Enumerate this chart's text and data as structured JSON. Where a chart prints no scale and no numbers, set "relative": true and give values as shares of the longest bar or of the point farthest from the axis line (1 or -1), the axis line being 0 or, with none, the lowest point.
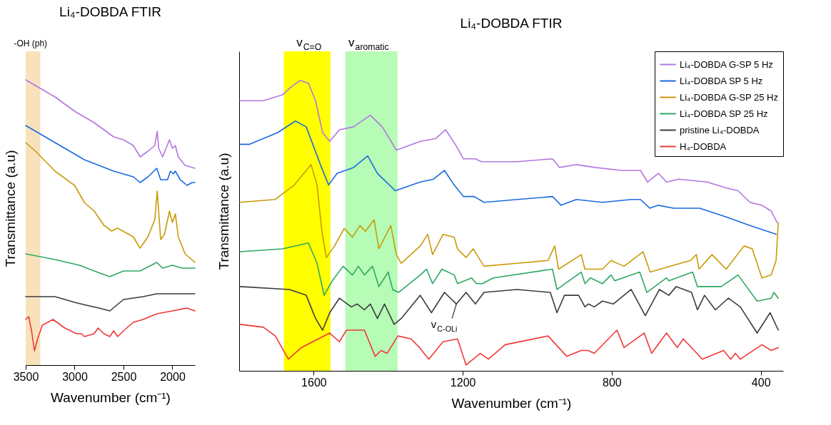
{
  "chart_data": [
    {
      "type": "line",
      "title": "Li₄-DOBDA FTIR",
      "xlabel": "Wavenumber (cm⁻¹)",
      "ylabel": "Transmittance (a.u)",
      "relative": true,
      "xlim": [
        3500,
        1770
      ],
      "xticks": [
        3500,
        3000,
        2500,
        2000
      ],
      "bands": [
        {
          "axis": "x",
          "from": 3500,
          "to": 3350,
          "label": "-OH (ph)",
          "color": "#f8e2bc"
        }
      ],
      "series": [
        {
          "color": "#b277e0",
          "x": [
            3500,
            3400,
            3200,
            3000,
            2800,
            2600,
            2500,
            2400,
            2330,
            2250,
            2180,
            2155,
            2140,
            2100,
            2030,
            2000,
            1970,
            1940,
            1870,
            1770
          ],
          "values": [
            1.0,
            0.98,
            0.94,
            0.89,
            0.85,
            0.8,
            0.79,
            0.77,
            0.73,
            0.75,
            0.77,
            0.82,
            0.76,
            0.73,
            0.79,
            0.76,
            0.77,
            0.73,
            0.7,
            0.69
          ]
        },
        {
          "color": "#1a6ae0",
          "x": [
            3500,
            3200,
            2900,
            2600,
            2400,
            2330,
            2250,
            2160,
            2120,
            2050,
            2020,
            1990,
            1970,
            1920,
            1850,
            1800,
            1770
          ],
          "values": [
            0.84,
            0.78,
            0.72,
            0.68,
            0.66,
            0.64,
            0.66,
            0.69,
            0.65,
            0.65,
            0.68,
            0.67,
            0.68,
            0.65,
            0.63,
            0.64,
            0.64
          ]
        },
        {
          "color": "#c99a06",
          "x": [
            3500,
            3400,
            3200,
            3000,
            2900,
            2800,
            2700,
            2620,
            2560,
            2400,
            2330,
            2250,
            2180,
            2155,
            2120,
            2080,
            2030,
            2000,
            1970,
            1940,
            1870,
            1770
          ],
          "values": [
            0.78,
            0.75,
            0.68,
            0.63,
            0.57,
            0.54,
            0.49,
            0.47,
            0.48,
            0.45,
            0.41,
            0.45,
            0.51,
            0.61,
            0.44,
            0.46,
            0.54,
            0.5,
            0.53,
            0.45,
            0.39,
            0.36
          ]
        },
        {
          "color": "#2ea862",
          "x": [
            3500,
            3200,
            2950,
            2800,
            2640,
            2500,
            2330,
            2160,
            2100,
            2000,
            1900,
            1770
          ],
          "values": [
            0.39,
            0.37,
            0.35,
            0.33,
            0.31,
            0.33,
            0.33,
            0.36,
            0.34,
            0.35,
            0.34,
            0.34
          ]
        },
        {
          "color": "#3c3c3c",
          "x": [
            3500,
            3200,
            3000,
            2880,
            2750,
            2640,
            2500,
            2300,
            2160,
            2000,
            1770
          ],
          "values": [
            0.24,
            0.24,
            0.22,
            0.21,
            0.2,
            0.19,
            0.23,
            0.24,
            0.25,
            0.25,
            0.25
          ]
        },
        {
          "color": "#f03838",
          "x": [
            3500,
            3470,
            3440,
            3410,
            3380,
            3330,
            3220,
            3100,
            2980,
            2930,
            2900,
            2800,
            2760,
            2700,
            2640,
            2600,
            2560,
            2500,
            2400,
            2300,
            2160,
            2000,
            1850,
            1770
          ],
          "values": [
            0.16,
            0.17,
            0.12,
            0.05,
            0.09,
            0.14,
            0.16,
            0.13,
            0.11,
            0.11,
            0.1,
            0.11,
            0.13,
            0.11,
            0.1,
            0.12,
            0.1,
            0.12,
            0.15,
            0.16,
            0.18,
            0.19,
            0.2,
            0.19
          ]
        }
      ]
    },
    {
      "type": "line",
      "title": "Li₄-DOBDA FTIR",
      "xlabel": "Wavenumber (cm⁻¹)",
      "ylabel": "Transmittance (a.u)",
      "relative": true,
      "xlim": [
        1800,
        340
      ],
      "xticks": [
        1600,
        1200,
        800,
        400
      ],
      "legend": "top right",
      "bands": [
        {
          "axis": "x",
          "from": 1680,
          "to": 1555,
          "label": "v$_{C=O}$",
          "color": "#ffff00"
        },
        {
          "axis": "x",
          "from": 1515,
          "to": 1375,
          "label": "v$_{aromatic}$",
          "color": "#b6fbb6"
        }
      ],
      "annotations": [
        {
          "text": "v$_{C-OLi}$",
          "x": 1217,
          "y": 0.23
        }
      ],
      "series": [
        {
          "name": "Li₄-DOBDA G-SP 5 Hz",
          "color": "#b277e0",
          "x": [
            1798,
            1735,
            1684,
            1658,
            1636,
            1614,
            1595,
            1576,
            1557,
            1531,
            1493,
            1448,
            1416,
            1378,
            1314,
            1272,
            1246,
            1220,
            1198,
            1166,
            1150,
            1054,
            959,
            940,
            895,
            844,
            774,
            723,
            704,
            675,
            653,
            621,
            544,
            493,
            461,
            429,
            397,
            372,
            356
          ],
          "values": [
            0.93,
            0.93,
            0.95,
            0.98,
            1.0,
            0.99,
            0.93,
            0.82,
            0.79,
            0.83,
            0.84,
            0.88,
            0.84,
            0.76,
            0.79,
            0.8,
            0.83,
            0.78,
            0.73,
            0.73,
            0.72,
            0.72,
            0.73,
            0.7,
            0.71,
            0.7,
            0.69,
            0.69,
            0.65,
            0.68,
            0.65,
            0.66,
            0.65,
            0.63,
            0.62,
            0.58,
            0.57,
            0.55,
            0.51
          ]
        },
        {
          "name": "Li₄-DOBDA SP 5 Hz",
          "color": "#1a6ae0",
          "x": [
            1798,
            1772,
            1697,
            1649,
            1620,
            1582,
            1560,
            1537,
            1493,
            1455,
            1429,
            1381,
            1314,
            1278,
            1249,
            1223,
            1198,
            1169,
            1143,
            1054,
            959,
            936,
            895,
            825,
            748,
            723,
            698,
            675,
            634,
            564,
            493,
            429,
            359
          ],
          "values": [
            0.78,
            0.78,
            0.82,
            0.86,
            0.84,
            0.71,
            0.64,
            0.68,
            0.7,
            0.74,
            0.68,
            0.62,
            0.65,
            0.66,
            0.69,
            0.64,
            0.6,
            0.6,
            0.58,
            0.59,
            0.6,
            0.57,
            0.59,
            0.58,
            0.59,
            0.59,
            0.56,
            0.57,
            0.56,
            0.56,
            0.53,
            0.5,
            0.47
          ]
        },
        {
          "name": "Li₄-DOBDA G-SP 25 Hz",
          "color": "#c99a06",
          "x": [
            1798,
            1703,
            1652,
            1607,
            1591,
            1578,
            1566,
            1544,
            1518,
            1496,
            1476,
            1461,
            1438,
            1425,
            1393,
            1378,
            1365,
            1314,
            1294,
            1281,
            1253,
            1223,
            1214,
            1191,
            1172,
            1143,
            1054,
            971,
            953,
            943,
            882,
            872,
            825,
            802,
            767,
            716,
            697,
            589,
            573,
            566,
            531,
            493,
            445,
            423,
            397,
            372,
            359,
            353
          ],
          "values": [
            0.58,
            0.59,
            0.64,
            0.71,
            0.64,
            0.48,
            0.39,
            0.43,
            0.49,
            0.46,
            0.5,
            0.48,
            0.52,
            0.42,
            0.5,
            0.4,
            0.37,
            0.43,
            0.47,
            0.4,
            0.47,
            0.46,
            0.42,
            0.39,
            0.42,
            0.36,
            0.37,
            0.38,
            0.43,
            0.35,
            0.4,
            0.35,
            0.35,
            0.38,
            0.36,
            0.41,
            0.34,
            0.38,
            0.4,
            0.35,
            0.4,
            0.35,
            0.43,
            0.42,
            0.32,
            0.33,
            0.38,
            0.51
          ]
        },
        {
          "name": "Li₄-DOBDA SP 25 Hz",
          "color": "#2ea862",
          "x": [
            1798,
            1684,
            1614,
            1591,
            1572,
            1550,
            1521,
            1496,
            1480,
            1464,
            1442,
            1425,
            1400,
            1388,
            1372,
            1314,
            1297,
            1281,
            1256,
            1223,
            1214,
            1176,
            1163,
            1147,
            1118,
            959,
            947,
            882,
            872,
            857,
            825,
            802,
            792,
            725,
            706,
            653,
            647,
            583,
            570,
            506,
            461,
            410,
            372,
            365,
            353
          ],
          "values": [
            0.41,
            0.42,
            0.44,
            0.37,
            0.26,
            0.31,
            0.36,
            0.33,
            0.36,
            0.33,
            0.36,
            0.29,
            0.34,
            0.28,
            0.27,
            0.33,
            0.35,
            0.3,
            0.35,
            0.33,
            0.3,
            0.32,
            0.3,
            0.3,
            0.32,
            0.35,
            0.28,
            0.34,
            0.3,
            0.32,
            0.3,
            0.33,
            0.31,
            0.34,
            0.27,
            0.32,
            0.31,
            0.34,
            0.29,
            0.29,
            0.33,
            0.24,
            0.25,
            0.27,
            0.25
          ]
        },
        {
          "name": "pristine Li₄-DOBDA",
          "color": "#3c3c3c",
          "x": [
            1798,
            1665,
            1620,
            1595,
            1576,
            1557,
            1531,
            1499,
            1483,
            1464,
            1448,
            1429,
            1410,
            1384,
            1365,
            1314,
            1284,
            1249,
            1217,
            1191,
            1166,
            1143,
            1054,
            965,
            947,
            927,
            889,
            872,
            863,
            847,
            825,
            796,
            748,
            710,
            672,
            647,
            627,
            586,
            570,
            551,
            522,
            487,
            455,
            410,
            375,
            353
          ],
          "values": [
            0.29,
            0.28,
            0.26,
            0.18,
            0.14,
            0.2,
            0.25,
            0.22,
            0.23,
            0.21,
            0.23,
            0.18,
            0.23,
            0.16,
            0.18,
            0.26,
            0.2,
            0.27,
            0.23,
            0.27,
            0.23,
            0.27,
            0.28,
            0.27,
            0.2,
            0.26,
            0.26,
            0.22,
            0.23,
            0.22,
            0.24,
            0.23,
            0.28,
            0.19,
            0.28,
            0.26,
            0.29,
            0.27,
            0.21,
            0.26,
            0.21,
            0.25,
            0.22,
            0.13,
            0.2,
            0.14
          ]
        },
        {
          "name": "H₄-DOBDA",
          "color": "#f03838",
          "x": [
            1798,
            1735,
            1703,
            1668,
            1633,
            1557,
            1531,
            1512,
            1464,
            1435,
            1419,
            1403,
            1374,
            1339,
            1316,
            1291,
            1253,
            1214,
            1191,
            1153,
            1131,
            1086,
            971,
            921,
            882,
            863,
            847,
            786,
            767,
            713,
            693,
            653,
            624,
            608,
            557,
            500,
            481,
            468,
            455,
            397,
            372,
            353
          ],
          "values": [
            0.16,
            0.15,
            0.12,
            0.04,
            0.08,
            0.13,
            0.1,
            0.14,
            0.14,
            0.05,
            0.07,
            0.06,
            0.12,
            0.11,
            0.08,
            0.04,
            0.1,
            0.11,
            0.02,
            0.06,
            0.04,
            0.09,
            0.12,
            0.05,
            0.07,
            0.07,
            0.06,
            0.14,
            0.08,
            0.13,
            0.06,
            0.13,
            0.08,
            0.11,
            0.04,
            0.07,
            0.04,
            0.06,
            0.04,
            0.09,
            0.07,
            0.08
          ]
        }
      ]
    }
  ]
}
